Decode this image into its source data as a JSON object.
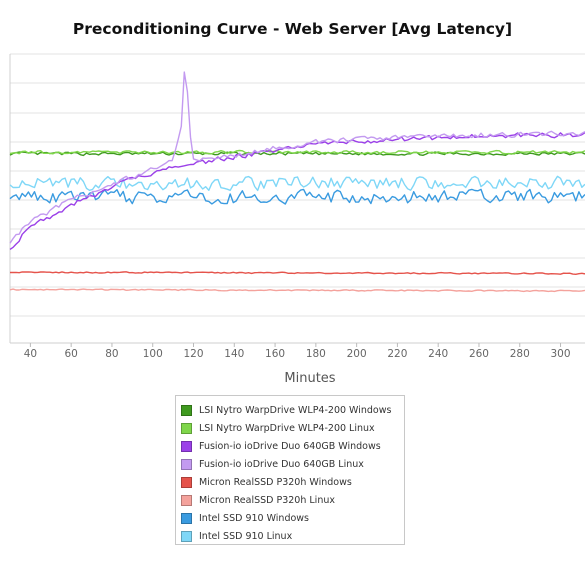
{
  "chart_data": {
    "type": "line",
    "title": "Preconditioning Curve - Web Server [Avg Latency]",
    "xlabel": "Minutes",
    "ylabel": "",
    "xlim": [
      30,
      312
    ],
    "ylim": [
      0,
      10
    ],
    "x_ticks": [
      40,
      60,
      80,
      100,
      120,
      140,
      160,
      180,
      200,
      220,
      240,
      260,
      280,
      300
    ],
    "grid": true,
    "legend_position": "bottom-center",
    "series": [
      {
        "name": "LSI Nytro WarpDrive WLP4-200 Windows",
        "color": "#3f9a1f",
        "x": [
          30,
          312
        ],
        "y": [
          6.55,
          6.55
        ],
        "jitter": 0.05
      },
      {
        "name": "LSI Nytro WarpDrive WLP4-200 Linux",
        "color": "#7fd64a",
        "x": [
          30,
          312
        ],
        "y": [
          6.6,
          6.6
        ],
        "jitter": 0.05
      },
      {
        "name": "Fusion-io ioDrive Duo 640GB Windows",
        "color": "#9b40e8",
        "x": [
          30,
          40,
          60,
          80,
          100,
          120,
          140,
          160,
          180,
          200,
          220,
          240,
          260,
          280,
          300,
          312
        ],
        "y": [
          3.3,
          4.0,
          4.8,
          5.4,
          5.9,
          6.2,
          6.45,
          6.65,
          6.85,
          6.95,
          7.05,
          7.1,
          7.15,
          7.2,
          7.2,
          7.2
        ],
        "jitter": 0.08
      },
      {
        "name": "Fusion-io ioDrive Duo 640GB Linux",
        "color": "#c39af0",
        "x": [
          30,
          40,
          60,
          80,
          100,
          110,
          114,
          116,
          118,
          120,
          140,
          160,
          180,
          200,
          220,
          240,
          260,
          280,
          300,
          312
        ],
        "y": [
          3.5,
          4.2,
          4.95,
          5.5,
          6.0,
          6.3,
          7.5,
          10.0,
          7.4,
          6.3,
          6.5,
          6.75,
          6.95,
          7.05,
          7.1,
          7.15,
          7.2,
          7.2,
          7.25,
          7.25
        ],
        "jitter": 0.08
      },
      {
        "name": "Micron RealSSD P320h Windows",
        "color": "#e5534b",
        "x": [
          30,
          312
        ],
        "y": [
          2.45,
          2.4
        ],
        "jitter": 0.02
      },
      {
        "name": "Micron RealSSD P320h Linux",
        "color": "#f4a29c",
        "x": [
          30,
          312
        ],
        "y": [
          1.85,
          1.8
        ],
        "jitter": 0.02
      },
      {
        "name": "Intel SSD 910 Windows",
        "color": "#3a9be0",
        "x": [
          30,
          312
        ],
        "y": [
          5.05,
          5.05
        ],
        "jitter": 0.22
      },
      {
        "name": "Intel SSD 910 Linux",
        "color": "#7fd7f7",
        "x": [
          30,
          312
        ],
        "y": [
          5.5,
          5.55
        ],
        "jitter": 0.22
      }
    ]
  }
}
